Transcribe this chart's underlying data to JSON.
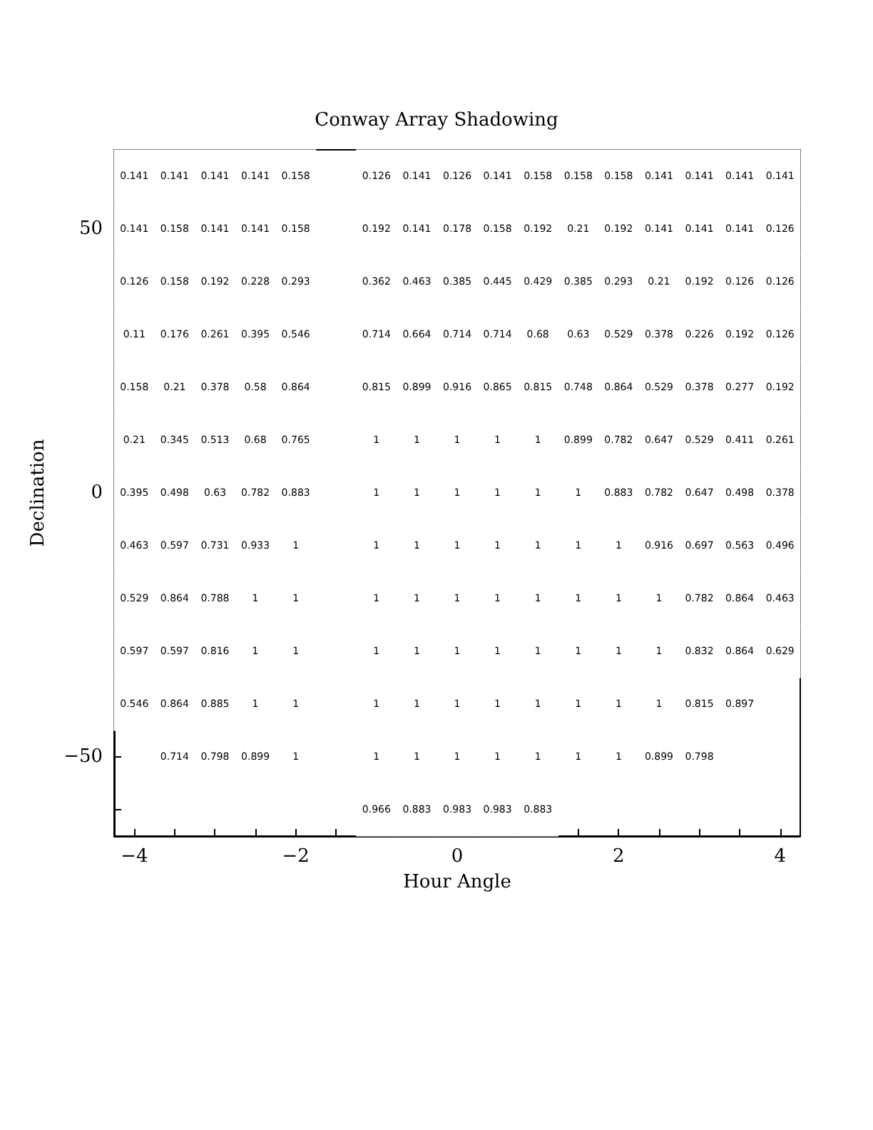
{
  "chart_data": {
    "type": "heatmap",
    "title": "Conway Array Shadowing",
    "xlabel": "Hour Angle",
    "ylabel": "Declination",
    "data_labels": true,
    "categories": [
      "−4",
      null,
      null,
      null,
      "−2",
      null,
      null,
      null,
      "0",
      null,
      null,
      null,
      "2",
      null,
      null,
      null,
      "4"
    ],
    "y_categories": [
      null,
      "50",
      null,
      null,
      null,
      null,
      "0",
      null,
      null,
      null,
      null,
      "−50",
      null
    ],
    "cells": [
      [
        0.141,
        0.141,
        0.141,
        0.141,
        0.158,
        null,
        0.126,
        0.141,
        0.126,
        0.141,
        0.158,
        0.158,
        0.158,
        0.141,
        0.141,
        0.141,
        0.141
      ],
      [
        0.141,
        0.158,
        0.141,
        0.141,
        0.158,
        null,
        0.192,
        0.141,
        0.178,
        0.158,
        0.192,
        0.21,
        0.192,
        0.141,
        0.141,
        0.141,
        0.126
      ],
      [
        0.126,
        0.158,
        0.192,
        0.228,
        0.293,
        null,
        0.362,
        0.463,
        0.385,
        0.445,
        0.429,
        0.385,
        0.293,
        0.21,
        0.192,
        0.126,
        0.126
      ],
      [
        0.11,
        0.176,
        0.261,
        0.395,
        0.546,
        null,
        0.714,
        0.664,
        0.714,
        0.714,
        0.68,
        0.63,
        0.529,
        0.378,
        0.226,
        0.192,
        0.126
      ],
      [
        0.158,
        0.21,
        0.378,
        0.58,
        0.864,
        null,
        0.815,
        0.899,
        0.916,
        0.865,
        0.815,
        0.748,
        0.864,
        0.529,
        0.378,
        0.277,
        0.192
      ],
      [
        0.21,
        0.345,
        0.513,
        0.68,
        0.765,
        null,
        1,
        1,
        1,
        1,
        1,
        0.899,
        0.782,
        0.647,
        0.529,
        0.411,
        0.261
      ],
      [
        0.395,
        0.498,
        0.63,
        0.782,
        0.883,
        null,
        1,
        1,
        1,
        1,
        1,
        1,
        0.883,
        0.782,
        0.647,
        0.498,
        0.378
      ],
      [
        0.463,
        0.597,
        0.731,
        0.933,
        1,
        null,
        1,
        1,
        1,
        1,
        1,
        1,
        1,
        0.916,
        0.697,
        0.563,
        0.496
      ],
      [
        0.529,
        0.864,
        0.788,
        1,
        1,
        null,
        1,
        1,
        1,
        1,
        1,
        1,
        1,
        1,
        0.782,
        0.864,
        0.463
      ],
      [
        0.597,
        0.597,
        0.816,
        1,
        1,
        null,
        1,
        1,
        1,
        1,
        1,
        1,
        1,
        1,
        0.832,
        0.864,
        0.629
      ],
      [
        0.546,
        0.864,
        0.885,
        1,
        1,
        null,
        1,
        1,
        1,
        1,
        1,
        1,
        1,
        1,
        0.815,
        0.897,
        null
      ],
      [
        null,
        0.714,
        0.798,
        0.899,
        1,
        null,
        1,
        1,
        1,
        1,
        1,
        1,
        1,
        0.899,
        0.798,
        null,
        null
      ],
      [
        null,
        null,
        null,
        null,
        null,
        null,
        0.966,
        0.883,
        0.983,
        0.983,
        0.883,
        null,
        null,
        null,
        null,
        null,
        null
      ]
    ]
  }
}
